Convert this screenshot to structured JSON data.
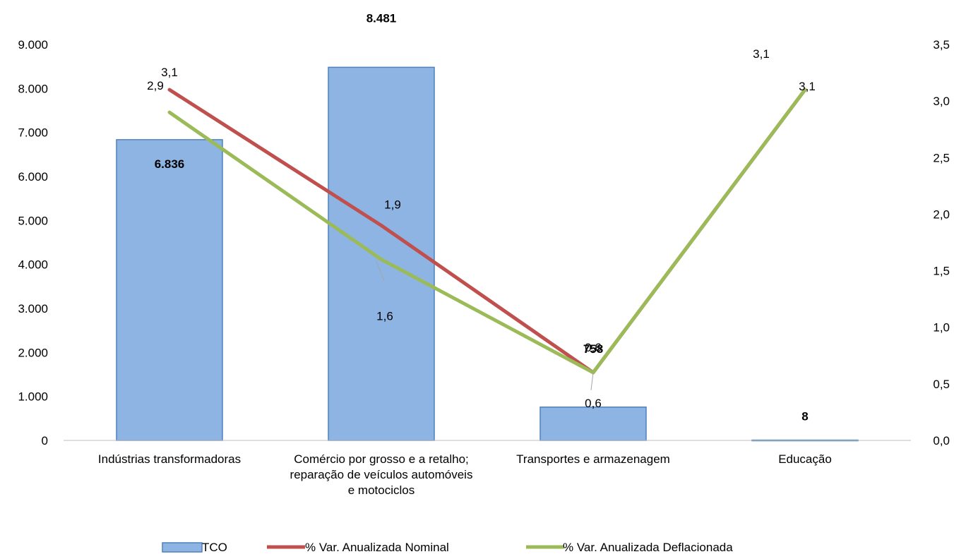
{
  "chart_data": {
    "type": "bar",
    "categories": [
      "Indústrias transformadoras",
      "Comércio por grosso e a retalho; reparação de veículos automóveis e motociclos",
      "Transportes e armazenagem",
      "Educação"
    ],
    "category_lines": [
      [
        "Indústrias transformadoras"
      ],
      [
        "Comércio por grosso e a retalho;",
        "reparação de veículos automóveis",
        "e motociclos"
      ],
      [
        "Transportes e armazenagem"
      ],
      [
        "Educação"
      ]
    ],
    "series": [
      {
        "name": "TCO",
        "type": "bar",
        "axis": "left",
        "values": [
          6836,
          8481,
          758,
          8
        ],
        "labels": [
          "6.836",
          "8.481",
          "758",
          "8"
        ],
        "color": "#8EB4E3",
        "border": "#4F81BD"
      },
      {
        "name": "% Var. Anualizada Nominal",
        "type": "line",
        "axis": "right",
        "values": [
          3.1,
          1.9,
          0.6,
          3.1
        ],
        "labels": [
          "3,1",
          "1,9",
          "0,6",
          "3,1"
        ],
        "color": "#C0504D"
      },
      {
        "name": "% Var. Anualizada Deflacionada",
        "type": "line",
        "axis": "right",
        "values": [
          2.9,
          1.6,
          0.6,
          3.1
        ],
        "labels": [
          "2,9",
          "1,6",
          "0,6",
          "3,1"
        ],
        "color": "#9BBB59"
      }
    ],
    "y_left": {
      "min": 0,
      "max": 9000,
      "ticks": [
        0,
        1000,
        2000,
        3000,
        4000,
        5000,
        6000,
        7000,
        8000,
        9000
      ],
      "tick_labels": [
        "0",
        "1.000",
        "2.000",
        "3.000",
        "4.000",
        "5.000",
        "6.000",
        "7.000",
        "8.000",
        "9.000"
      ]
    },
    "y_right": {
      "min": 0,
      "max": 3.5,
      "ticks": [
        0,
        0.5,
        1.0,
        1.5,
        2.0,
        2.5,
        3.0,
        3.5
      ],
      "tick_labels": [
        "0,0",
        "0,5",
        "1,0",
        "1,5",
        "2,0",
        "2,5",
        "3,0",
        "3,5"
      ]
    },
    "grid": false,
    "legend_position": "bottom"
  }
}
